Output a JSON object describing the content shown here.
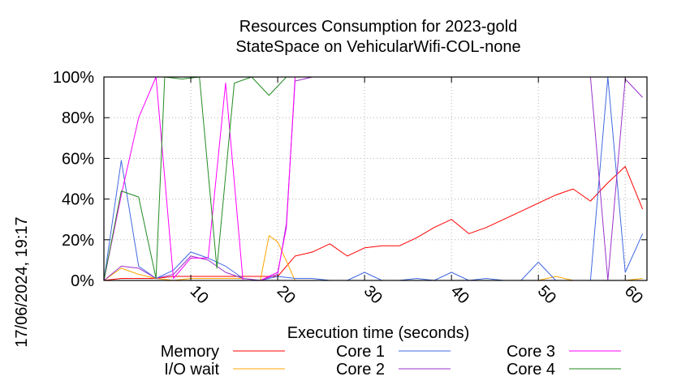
{
  "chart_data": {
    "type": "line",
    "title_line1": "Resources Consumption for 2023-gold",
    "title_line2": "StateSpace on VehicularWifi-COL-none",
    "xlabel": "Execution time (seconds)",
    "ylabel": "",
    "timestamp": "17/06/2024, 19:17",
    "xlim": [
      0,
      62.5
    ],
    "ylim": [
      0,
      100
    ],
    "x_ticks": [
      "10",
      "20",
      "30",
      "40",
      "50",
      "60"
    ],
    "x_tick_values": [
      10,
      20,
      30,
      40,
      50,
      60
    ],
    "y_ticks": [
      "0%",
      "20%",
      "40%",
      "60%",
      "80%",
      "100%"
    ],
    "y_tick_values": [
      0,
      20,
      40,
      60,
      80,
      100
    ],
    "grid": true,
    "legend_position": "bottom",
    "series": [
      {
        "name": "Memory",
        "color": "#ff0000",
        "x": [
          0,
          2,
          4,
          6,
          8,
          10,
          12,
          14,
          16,
          18,
          20,
          22,
          24,
          26,
          28,
          30,
          32,
          34,
          36,
          38,
          40,
          42,
          44,
          46,
          48,
          50,
          52,
          54,
          56,
          58,
          60,
          62
        ],
        "y": [
          0,
          1,
          1,
          1,
          2,
          2,
          2,
          2,
          2,
          2,
          2,
          12,
          14,
          18,
          12,
          16,
          17,
          17,
          21,
          26,
          30,
          23,
          26,
          30,
          34,
          38,
          42,
          45,
          39,
          48,
          56,
          35
        ]
      },
      {
        "name": "I/O wait",
        "color": "#ffa500",
        "x": [
          0,
          2,
          4,
          6,
          8,
          10,
          12,
          14,
          16,
          18,
          19,
          20,
          22,
          24,
          26,
          28,
          30,
          32,
          34,
          36,
          38,
          40,
          42,
          44,
          46,
          48,
          50,
          52,
          54,
          56,
          58,
          60,
          62
        ],
        "y": [
          0,
          6,
          3,
          1,
          0,
          1,
          1,
          1,
          1,
          0,
          22,
          19,
          0,
          0,
          0,
          0,
          0,
          0,
          0,
          0,
          0,
          0,
          0,
          0,
          0,
          0,
          0,
          2,
          0,
          0,
          0,
          0,
          1
        ]
      },
      {
        "name": "Core 1",
        "color": "#4169e1",
        "x": [
          0,
          2,
          4,
          6,
          8,
          10,
          12,
          14,
          16,
          18,
          20,
          22,
          24,
          26,
          28,
          30,
          32,
          34,
          36,
          38,
          40,
          42,
          44,
          46,
          48,
          50,
          52,
          54,
          56,
          58,
          60,
          62
        ],
        "y": [
          0,
          59,
          7,
          1,
          5,
          14,
          11,
          7,
          1,
          0,
          2,
          1,
          1,
          0,
          0,
          4,
          0,
          0,
          1,
          0,
          4,
          0,
          1,
          0,
          0,
          9,
          0,
          0,
          0,
          100,
          4,
          23
        ]
      },
      {
        "name": "Core 2",
        "color": "#9932cc",
        "x": [
          0,
          2,
          4,
          6,
          8,
          10,
          12,
          14,
          16,
          18,
          20,
          21,
          22,
          24,
          26,
          28,
          30,
          32,
          34,
          36,
          38,
          40,
          42,
          44,
          46,
          48,
          50,
          52,
          54,
          56,
          58,
          60,
          62
        ],
        "y": [
          0,
          7,
          6,
          1,
          3,
          12,
          10,
          4,
          1,
          0,
          3,
          28,
          98,
          100,
          100,
          100,
          100,
          100,
          100,
          100,
          100,
          100,
          100,
          100,
          100,
          100,
          100,
          100,
          100,
          100,
          0,
          99,
          90
        ]
      },
      {
        "name": "Core 3",
        "color": "#ff00ff",
        "x": [
          0,
          2,
          4,
          6,
          8,
          10,
          12,
          14,
          16,
          18,
          20,
          21,
          22,
          24,
          26,
          28,
          30,
          32,
          34,
          36,
          38,
          40,
          42,
          44,
          46,
          48,
          50,
          52,
          54,
          56,
          58,
          60,
          62
        ],
        "y": [
          0,
          42,
          80,
          100,
          1,
          11,
          11,
          97,
          0,
          0,
          4,
          26,
          100,
          100,
          100,
          100,
          100,
          100,
          100,
          100,
          100,
          100,
          100,
          100,
          100,
          100,
          100,
          100,
          100,
          100,
          100,
          100,
          100
        ]
      },
      {
        "name": "Core 4",
        "color": "#228b22",
        "x": [
          0,
          2,
          4,
          6,
          7,
          9,
          11,
          13,
          15,
          17,
          19,
          21,
          23,
          25,
          27,
          29,
          31,
          33,
          35,
          37,
          39,
          41,
          43,
          45,
          47,
          49,
          51,
          53,
          55,
          57,
          58,
          60,
          62
        ],
        "y": [
          0,
          44,
          41,
          1,
          100,
          99,
          100,
          6,
          97,
          100,
          91,
          100,
          100,
          100,
          100,
          100,
          100,
          100,
          100,
          100,
          100,
          100,
          100,
          100,
          100,
          100,
          100,
          100,
          100,
          100,
          100,
          100,
          100
        ]
      }
    ]
  }
}
